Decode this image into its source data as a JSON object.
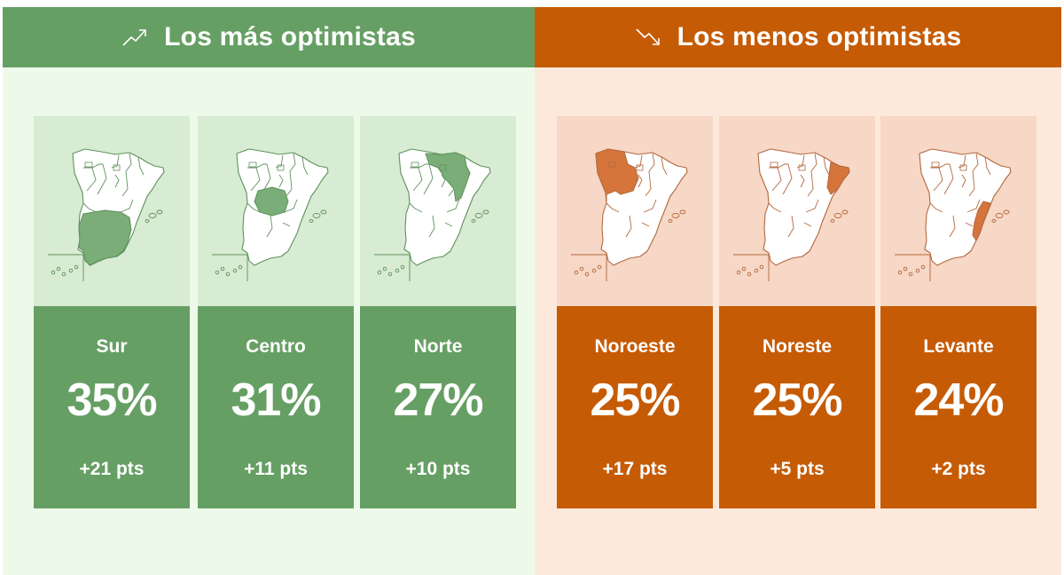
{
  "colors": {
    "green_dark": "#669f64",
    "green_bg": "#eefae9",
    "green_map_bg": "#d8ebd3",
    "green_highlight": "#7aad77",
    "orange_dark": "#c65b05",
    "orange_bg": "#fde9dc",
    "orange_map_bg": "#f7d7c5",
    "orange_highlight": "#d5753b"
  },
  "panels": {
    "optimistic": {
      "title": "Los más optimistas",
      "icon": "trend-up-icon"
    },
    "pessimistic": {
      "title": "Los menos optimistas",
      "icon": "trend-down-icon"
    }
  },
  "chart_data": {
    "type": "table",
    "unit": "%",
    "groups": [
      {
        "title": "Los más optimistas",
        "regions": [
          {
            "region": "Sur",
            "value": 35,
            "label": "35%",
            "change": "+21 pts"
          },
          {
            "region": "Centro",
            "value": 31,
            "label": "31%",
            "change": "+11 pts"
          },
          {
            "region": "Norte",
            "value": 27,
            "label": "27%",
            "change": "+10 pts"
          }
        ]
      },
      {
        "title": "Los menos optimistas",
        "regions": [
          {
            "region": "Noroeste",
            "value": 25,
            "label": "25%",
            "change": "+17 pts"
          },
          {
            "region": "Noreste",
            "value": 25,
            "label": "25%",
            "change": "+5 pts"
          },
          {
            "region": "Levante",
            "value": 24,
            "label": "24%",
            "change": "+2 pts"
          }
        ]
      }
    ]
  }
}
